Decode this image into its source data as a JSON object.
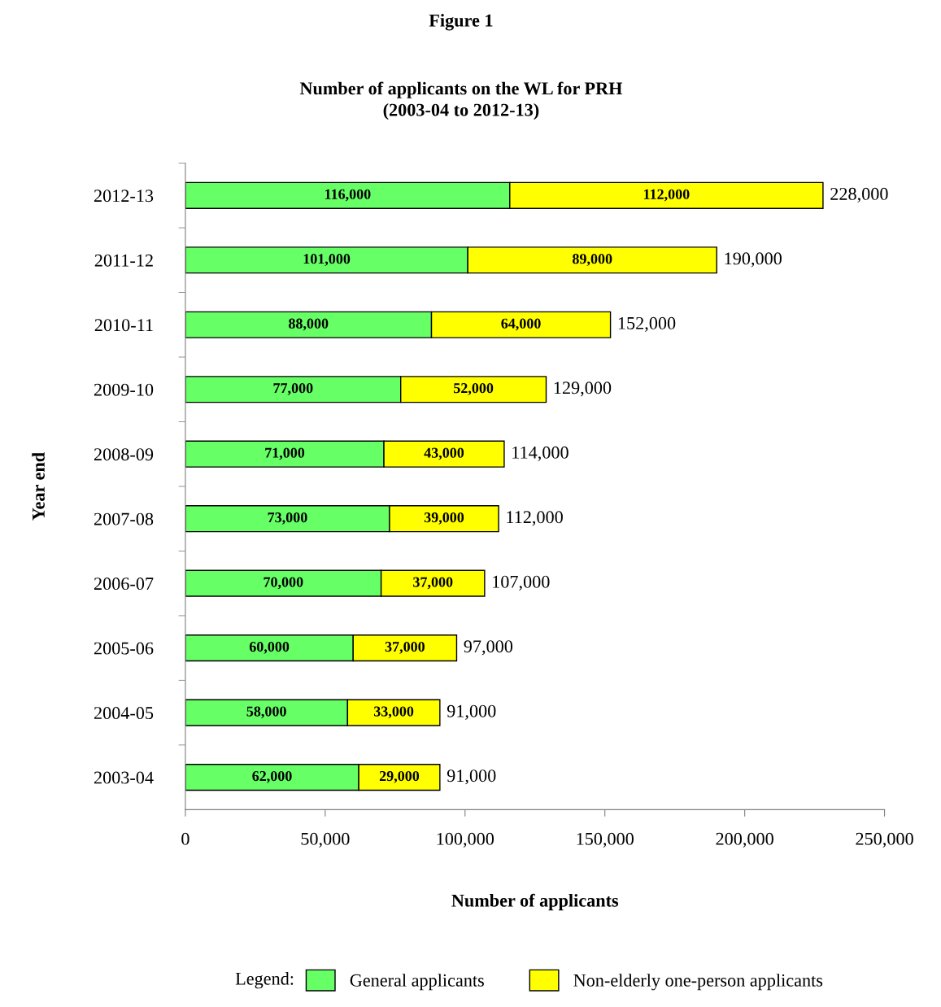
{
  "chart_data": {
    "type": "bar",
    "orientation": "horizontal",
    "stacked": true,
    "title": "Figure 1",
    "subtitle": "Number of applicants on the WL for PRH\n(2003-04 to 2012-13)",
    "xlabel": "Number of applicants",
    "ylabel": "Year end",
    "legend_title": "Legend:",
    "categories": [
      "2012-13",
      "2011-12",
      "2010-11",
      "2009-10",
      "2008-09",
      "2007-08",
      "2006-07",
      "2005-06",
      "2004-05",
      "2003-04"
    ],
    "series": [
      {
        "name": "General applicants",
        "color": "#66ff66",
        "values": [
          116000,
          101000,
          88000,
          77000,
          71000,
          73000,
          70000,
          60000,
          58000,
          62000
        ],
        "value_labels": [
          "116,000",
          "101,000",
          "88,000",
          "77,000",
          "71,000",
          "73,000",
          "70,000",
          "60,000",
          "58,000",
          "62,000"
        ]
      },
      {
        "name": "Non-elderly one-person applicants",
        "color": "#ffff00",
        "values": [
          112000,
          89000,
          64000,
          52000,
          43000,
          39000,
          37000,
          37000,
          33000,
          29000
        ],
        "value_labels": [
          "112,000",
          "89,000",
          "64,000",
          "52,000",
          "43,000",
          "39,000",
          "37,000",
          "37,000",
          "33,000",
          "29,000"
        ]
      }
    ],
    "totals": [
      "228,000",
      "190,000",
      "152,000",
      "129,000",
      "114,000",
      "112,000",
      "107,000",
      "97,000",
      "91,000",
      "91,000"
    ],
    "xlim": [
      0,
      250000
    ],
    "xticks": [
      0,
      {
        "value": 50000,
        "label": "50,000"
      },
      {
        "value": 100000,
        "label": "100,000"
      },
      {
        "value": 150000,
        "label": "150,000"
      },
      {
        "value": 200000,
        "label": "200,000"
      },
      {
        "value": 250000,
        "label": "250,000"
      }
    ],
    "grid": false,
    "legend": "bottom"
  }
}
